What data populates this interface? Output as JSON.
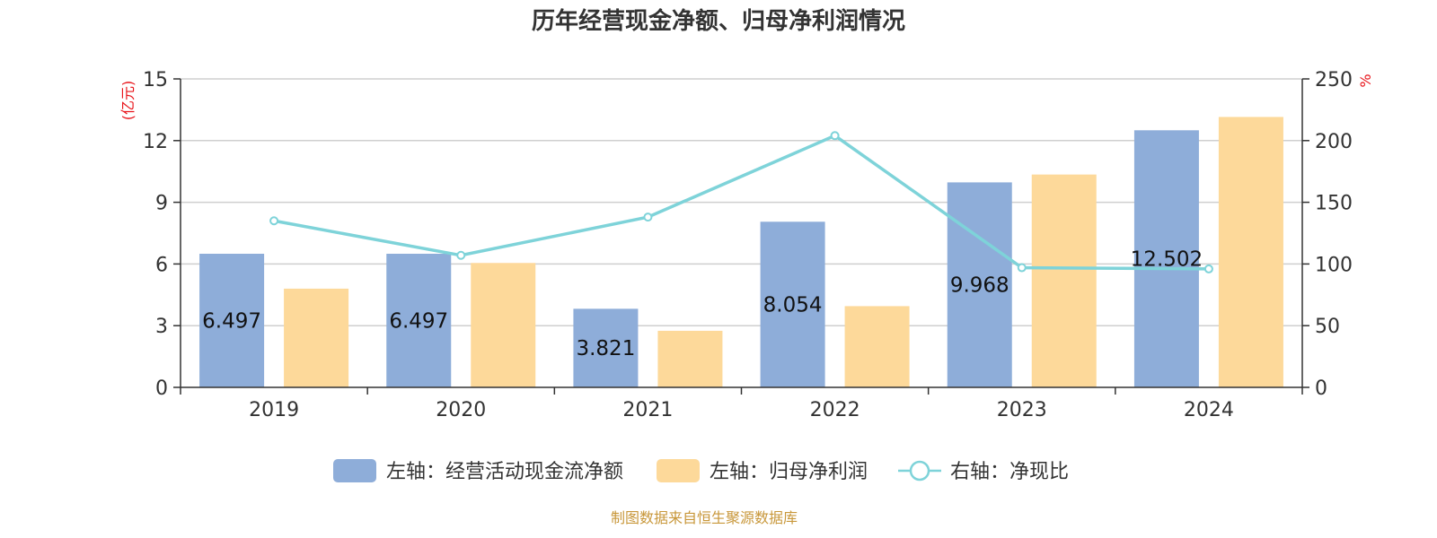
{
  "chart_data": {
    "type": "bar",
    "title": "历年经营现金净额、归母净利润情况",
    "categories": [
      "2019",
      "2020",
      "2021",
      "2022",
      "2023",
      "2024"
    ],
    "left_axis": {
      "unit": "(亿元)",
      "ylim": [
        0,
        15
      ],
      "ticks": [
        0,
        3,
        6,
        9,
        12,
        15
      ]
    },
    "right_axis": {
      "unit": "%",
      "ylim": [
        0,
        250
      ],
      "ticks": [
        0,
        50,
        100,
        150,
        200,
        250
      ]
    },
    "series": [
      {
        "name": "左轴：经营活动现金流净额",
        "type": "bar",
        "axis": "left",
        "color": "#8eadd9",
        "values": [
          6.497,
          6.497,
          3.821,
          8.054,
          9.968,
          12.502
        ],
        "labels": [
          "6.497",
          "6.497",
          "3.821",
          "8.054",
          "9.968",
          "12.502"
        ]
      },
      {
        "name": "左轴：归母净利润",
        "type": "bar",
        "axis": "left",
        "color": "#fdd99a",
        "values": [
          4.8,
          6.05,
          2.75,
          3.95,
          10.35,
          13.15
        ]
      },
      {
        "name": "右轴：净现比",
        "type": "line",
        "axis": "right",
        "color": "#7ed3d9",
        "values": [
          135,
          107,
          138,
          204,
          97,
          96
        ]
      }
    ],
    "grid": true,
    "legend_position": "bottom"
  },
  "source": "制图数据来自恒生聚源数据库"
}
